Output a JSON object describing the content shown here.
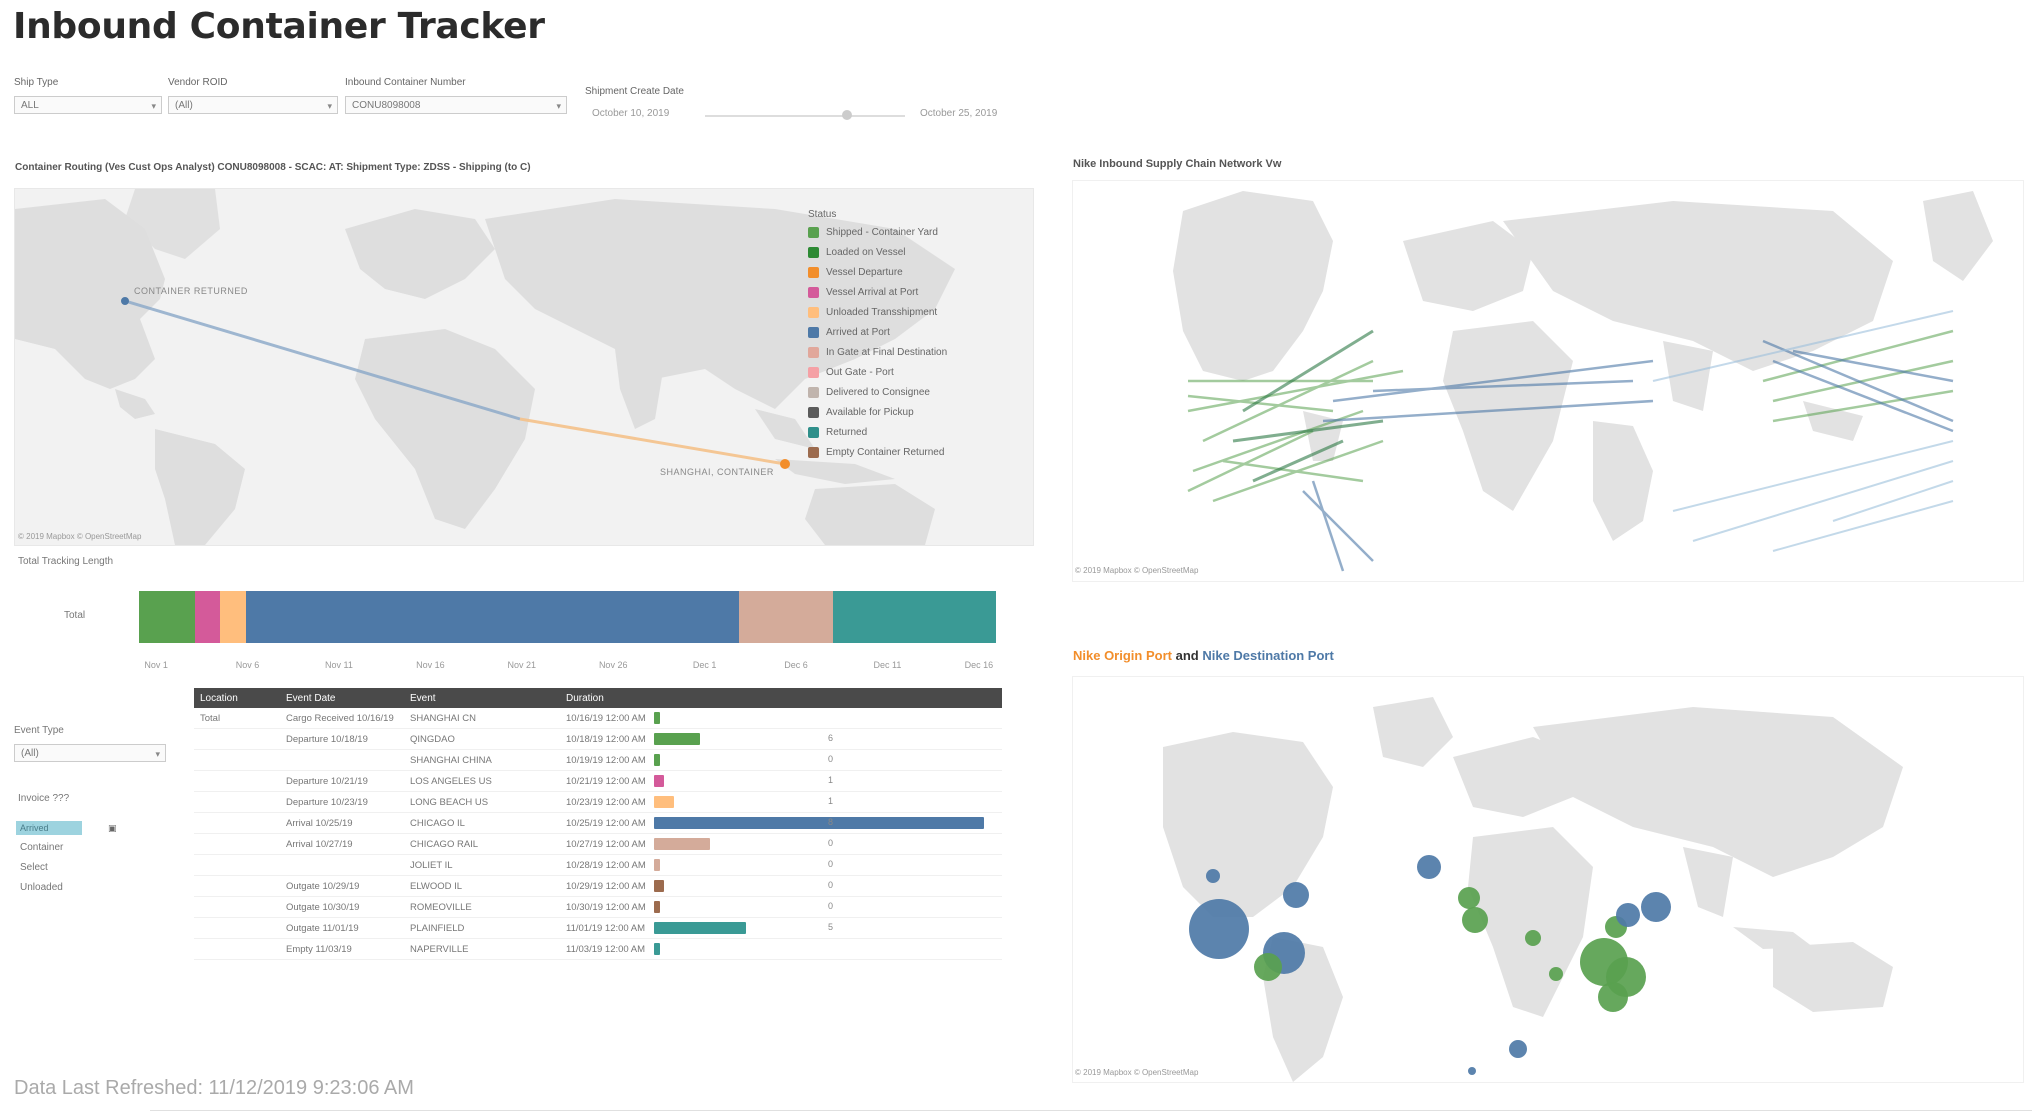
{
  "page_title": "Inbound Container Tracker",
  "filters": [
    {
      "label": "Ship Type",
      "value": "ALL"
    },
    {
      "label": "Vendor ROID",
      "value": "(All)"
    },
    {
      "label": "Inbound Container Number",
      "value": "CONU8098008"
    },
    {
      "label": "Shipment Create Date",
      "value_start": "October 10, 2019",
      "value_end": "October 25, 2019"
    }
  ],
  "route_map": {
    "heading": "Container Routing (Ves Cust Ops Analyst) CONU8098008 - SCAC: AT: Shipment Type: ZDSS - Shipping (to C)",
    "origin_label": "CONTAINER RETURNED",
    "destination_label": "SHANGHAI, CONTAINER",
    "legend_title": "Status",
    "legend": [
      {
        "label": "Shipped - Container Yard",
        "color": "#59a14f"
      },
      {
        "label": "Loaded on Vessel",
        "color": "#2d8a34"
      },
      {
        "label": "Vessel Departure",
        "color": "#f28e2b"
      },
      {
        "label": "Vessel Arrival at Port",
        "color": "#d45a9a"
      },
      {
        "label": "Unloaded Transshipment",
        "color": "#ffbe7d"
      },
      {
        "label": "Arrived at Port",
        "color": "#4e79a7"
      },
      {
        "label": "In Gate at Final Destination",
        "color": "#e1a79b"
      },
      {
        "label": "Out Gate - Port",
        "color": "#f5a0a5"
      },
      {
        "label": "Delivered to Consignee",
        "color": "#c0b4ad"
      },
      {
        "label": "Available for Pickup",
        "color": "#5b5b5b"
      },
      {
        "label": "Returned",
        "color": "#2f8f8a"
      },
      {
        "label": "Empty Container Returned",
        "color": "#9c6b4e"
      }
    ],
    "attribution": "© 2019 Mapbox © OpenStreetMap"
  },
  "time_bar": {
    "heading": "Total Tracking Length",
    "row_label": "Total",
    "ticks": [
      "Nov 1",
      "Nov 6",
      "Nov 11",
      "Nov 16",
      "Nov 21",
      "Nov 26",
      "Dec 1",
      "Dec 6",
      "Dec 11",
      "Dec 16"
    ],
    "segments": [
      {
        "color": "#59a14f",
        "share": 0.065
      },
      {
        "color": "#d45a9a",
        "share": 0.03
      },
      {
        "color": "#ffbe7d",
        "share": 0.03
      },
      {
        "color": "#4e79a7",
        "share": 0.575
      },
      {
        "color": "#d4ab9a",
        "share": 0.11
      },
      {
        "color": "#3a9a95",
        "share": 0.19
      }
    ]
  },
  "side_filters": {
    "event_type_label": "Event Type",
    "event_type_value": "(All)",
    "invoice_label": "Invoice ???",
    "invoice_options": [
      "Arrived",
      "Container",
      "Select",
      "Unloaded"
    ]
  },
  "event_table": {
    "headers": [
      "Location",
      "Event Date",
      "Event",
      "Duration"
    ],
    "rows": [
      {
        "loc": "Total",
        "date": "Cargo Received 10/16/19",
        "event": "SHANGHAI CN",
        "dur": "10/16/19 12:00 AM",
        "color": "#59a14f",
        "bar": 0.0,
        "n": ""
      },
      {
        "loc": "",
        "date": "Departure 10/18/19",
        "event": "QINGDAO",
        "dur": "10/18/19 12:00 AM",
        "color": "#59a14f",
        "bar": 0.14,
        "n": "6"
      },
      {
        "loc": "",
        "date": "",
        "event": "SHANGHAI CHINA",
        "dur": "10/19/19 12:00 AM",
        "color": "#59a14f",
        "bar": 0.0,
        "n": "0"
      },
      {
        "loc": "",
        "date": "Departure 10/21/19",
        "event": "LOS ANGELES US",
        "dur": "10/21/19 12:00 AM",
        "color": "#d45a9a",
        "bar": 0.03,
        "n": "1"
      },
      {
        "loc": "",
        "date": "Departure 10/23/19",
        "event": "LONG BEACH US",
        "dur": "10/23/19 12:00 AM",
        "color": "#ffbe7d",
        "bar": 0.06,
        "n": "1"
      },
      {
        "loc": "",
        "date": "Arrival 10/25/19",
        "event": "CHICAGO IL",
        "dur": "10/25/19 12:00 AM",
        "color": "#4e79a7",
        "bar": 1.0,
        "n": "8"
      },
      {
        "loc": "",
        "date": "Arrival 10/27/19",
        "event": "CHICAGO RAIL",
        "dur": "10/27/19 12:00 AM",
        "color": "#d4ab9a",
        "bar": 0.17,
        "n": "0"
      },
      {
        "loc": "",
        "date": "",
        "event": "JOLIET IL",
        "dur": "10/28/19 12:00 AM",
        "color": "#d4ab9a",
        "bar": 0.0,
        "n": "0"
      },
      {
        "loc": "",
        "date": "Outgate 10/29/19",
        "event": "ELWOOD IL",
        "dur": "10/29/19 12:00 AM",
        "color": "#9c6b4e",
        "bar": 0.03,
        "n": "0"
      },
      {
        "loc": "",
        "date": "Outgate 10/30/19",
        "event": "ROMEOVILLE",
        "dur": "10/30/19 12:00 AM",
        "color": "#9c6b4e",
        "bar": 0.0,
        "n": "0"
      },
      {
        "loc": "",
        "date": "Outgate 11/01/19",
        "event": "PLAINFIELD",
        "dur": "11/01/19 12:00 AM",
        "color": "#3a9a95",
        "bar": 0.28,
        "n": "5"
      },
      {
        "loc": "",
        "date": "Empty 11/03/19",
        "event": "NAPERVILLE",
        "dur": "11/03/19 12:00 AM",
        "color": "#3a9a95",
        "bar": 0.0,
        "n": ""
      }
    ]
  },
  "network_map": {
    "heading": "Nike Inbound Supply Chain Network Vw",
    "attribution": "© 2019 Mapbox © OpenStreetMap"
  },
  "port_map": {
    "heading_origin": "Nike Origin Port",
    "heading_and": "and",
    "heading_destination": "Nike Destination Port",
    "attribution": "© 2019 Mapbox © OpenStreetMap"
  },
  "refreshed": "Data Last Refreshed: 11/12/2019 9:23:06 AM"
}
